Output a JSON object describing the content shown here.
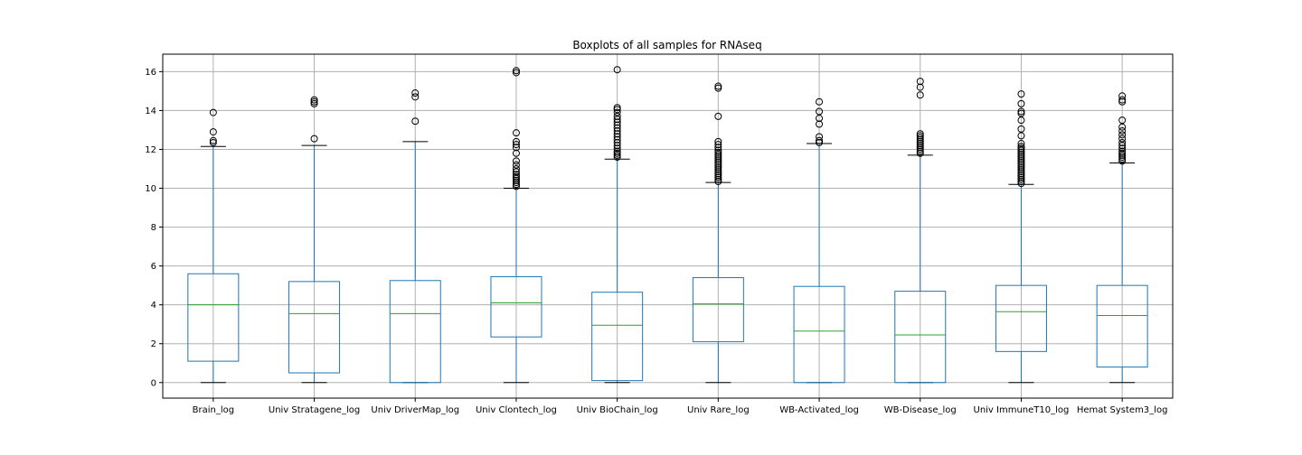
{
  "chart_data": {
    "type": "boxplot",
    "title": "Boxplots of all samples for RNAseq",
    "xlabel": "",
    "ylabel": "",
    "ylim": [
      -0.8,
      16.9
    ],
    "yticks": [
      0,
      2,
      4,
      6,
      8,
      10,
      12,
      14,
      16
    ],
    "grid": true,
    "colors": {
      "box": "#1f77b4",
      "median": "#2ca02c",
      "whisker": "#1f77b4",
      "cap": "#000000",
      "flier": "#000000",
      "grid": "#b0b0b0"
    },
    "categories": [
      "Brain_log",
      "Univ Stratagene_log",
      "Univ DriverMap_log",
      "Univ Clontech_log",
      "Univ BioChain_log",
      "Univ Rare_log",
      "WB-Activated_log",
      "WB-Disease_log",
      "Univ ImmuneT10_log",
      "Hemat System3_log"
    ],
    "boxes": [
      {
        "q1": 1.1,
        "median": 4.0,
        "q3": 5.6,
        "whisker_low": 0.0,
        "whisker_high": 12.15,
        "fliers": [
          12.35,
          12.45,
          12.9,
          13.9
        ]
      },
      {
        "q1": 0.5,
        "median": 3.55,
        "q3": 5.2,
        "whisker_low": 0.0,
        "whisker_high": 12.2,
        "fliers": [
          12.55,
          14.35,
          14.45,
          14.55
        ]
      },
      {
        "q1": 0.0,
        "median": 3.55,
        "q3": 5.25,
        "whisker_low": 0.0,
        "whisker_high": 12.4,
        "fliers": [
          13.45,
          14.7,
          14.9
        ]
      },
      {
        "q1": 2.35,
        "median": 4.1,
        "q3": 5.45,
        "whisker_low": 0.0,
        "whisker_high": 10.0,
        "fliers": [
          10.1,
          10.2,
          10.3,
          10.4,
          10.5,
          10.6,
          10.7,
          10.85,
          11.0,
          11.2,
          11.4,
          11.8,
          12.1,
          12.25,
          12.4,
          12.85,
          15.95,
          16.05
        ]
      },
      {
        "q1": 0.1,
        "median": 2.95,
        "q3": 4.65,
        "whisker_low": 0.0,
        "whisker_high": 11.5,
        "fliers": [
          11.6,
          11.7,
          11.8,
          11.9,
          12.05,
          12.2,
          12.35,
          12.5,
          12.65,
          12.8,
          12.95,
          13.1,
          13.25,
          13.4,
          13.55,
          13.7,
          13.9,
          14.05,
          14.15,
          16.1
        ]
      },
      {
        "q1": 2.1,
        "median": 4.05,
        "q3": 5.4,
        "whisker_low": 0.0,
        "whisker_high": 10.3,
        "fliers": [
          10.35,
          10.45,
          10.55,
          10.65,
          10.75,
          10.85,
          10.95,
          11.05,
          11.15,
          11.25,
          11.35,
          11.45,
          11.55,
          11.65,
          11.75,
          11.85,
          11.95,
          12.1,
          12.25,
          12.4,
          13.7,
          15.15,
          15.25
        ]
      },
      {
        "q1": 0.0,
        "median": 2.65,
        "q3": 4.95,
        "whisker_low": 0.0,
        "whisker_high": 12.3,
        "fliers": [
          12.35,
          12.45,
          12.65,
          13.3,
          13.6,
          13.95,
          14.45
        ]
      },
      {
        "q1": 0.0,
        "median": 2.45,
        "q3": 4.7,
        "whisker_low": 0.0,
        "whisker_high": 11.7,
        "fliers": [
          11.8,
          11.9,
          12.0,
          12.1,
          12.2,
          12.3,
          12.4,
          12.5,
          12.6,
          12.7,
          12.8,
          14.8,
          15.2,
          15.5
        ]
      },
      {
        "q1": 1.6,
        "median": 3.65,
        "q3": 5.0,
        "whisker_low": 0.0,
        "whisker_high": 10.2,
        "fliers": [
          10.25,
          10.35,
          10.45,
          10.55,
          10.65,
          10.75,
          10.85,
          10.95,
          11.05,
          11.15,
          11.25,
          11.35,
          11.45,
          11.55,
          11.65,
          11.75,
          11.85,
          11.95,
          12.05,
          12.15,
          12.3,
          12.7,
          13.05,
          13.5,
          13.85,
          13.95,
          14.35,
          14.85
        ]
      },
      {
        "q1": 0.8,
        "median": 3.45,
        "q3": 5.0,
        "whisker_low": 0.0,
        "whisker_high": 11.3,
        "fliers": [
          11.4,
          11.5,
          11.6,
          11.7,
          11.8,
          11.9,
          12.05,
          12.2,
          12.35,
          12.55,
          12.75,
          12.95,
          13.15,
          13.5,
          14.45,
          14.55,
          14.75
        ]
      }
    ]
  }
}
